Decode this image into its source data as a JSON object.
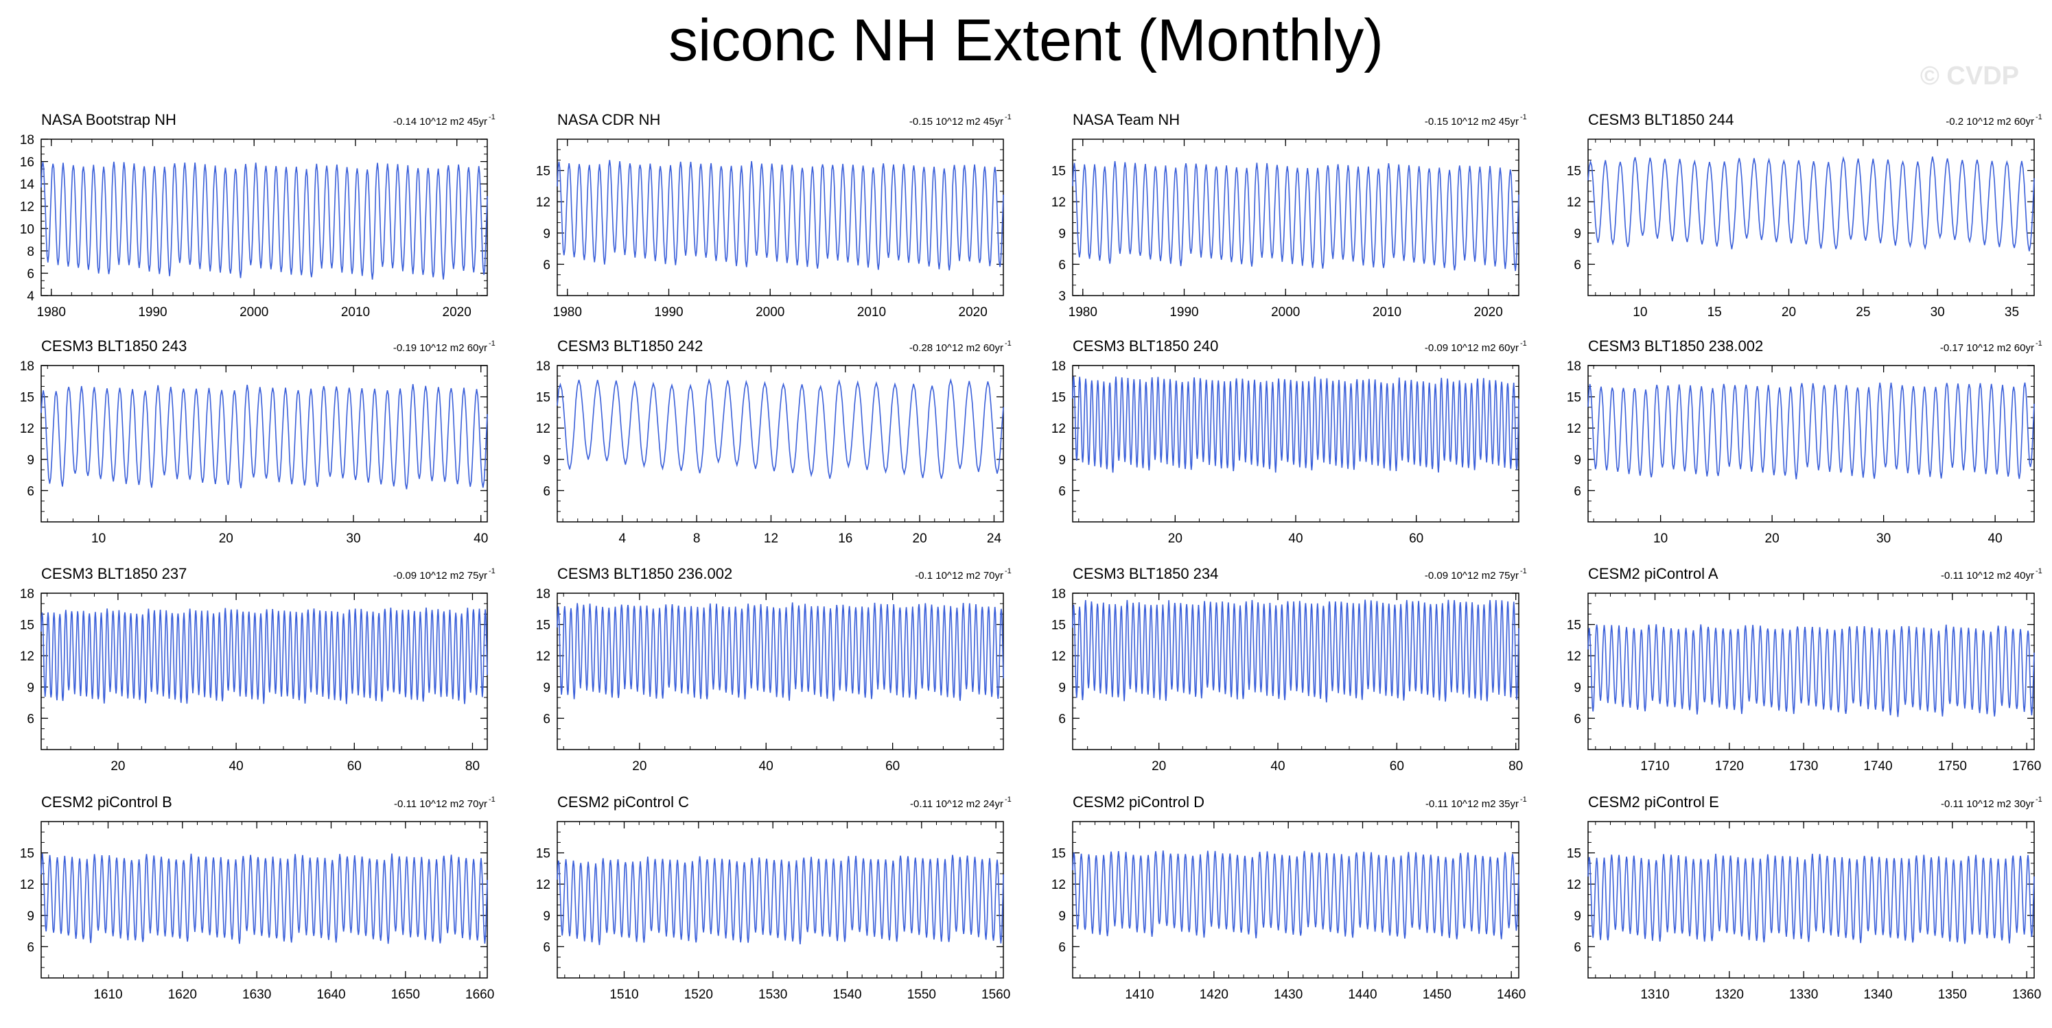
{
  "title": "siconc NH Extent (Monthly)",
  "watermark": "© CVDP",
  "line_color": "#3a5fd9",
  "chart_data": [
    {
      "type": "line",
      "title": "NASA Bootstrap NH",
      "trend": "-0.14 10^12 m2 45yr",
      "xlim": [
        1979,
        2023
      ],
      "ylim": [
        4,
        18
      ],
      "yticks": [
        4,
        6,
        8,
        10,
        12,
        14,
        16,
        18
      ],
      "xticks": [
        1980,
        1990,
        2000,
        2010,
        2020
      ],
      "min_start": 6.5,
      "min_end": 5.8,
      "max_start": 15.8,
      "max_end": 15.5
    },
    {
      "type": "line",
      "title": "NASA CDR NH",
      "trend": "-0.15 10^12 m2 45yr",
      "xlim": [
        1979,
        2023
      ],
      "ylim": [
        3,
        18
      ],
      "yticks": [
        6,
        9,
        12,
        15
      ],
      "xticks": [
        1980,
        1990,
        2000,
        2010,
        2020
      ],
      "min_start": 6.6,
      "min_end": 5.8,
      "max_start": 15.7,
      "max_end": 15.4
    },
    {
      "type": "line",
      "title": "NASA Team NH",
      "trend": "-0.15 10^12 m2 45yr",
      "xlim": [
        1979,
        2023
      ],
      "ylim": [
        3,
        18
      ],
      "yticks": [
        3,
        6,
        9,
        12,
        15
      ],
      "xticks": [
        1980,
        1990,
        2000,
        2010,
        2020
      ],
      "min_start": 6.6,
      "min_end": 5.8,
      "max_start": 15.6,
      "max_end": 15.3
    },
    {
      "type": "line",
      "title": "CESM3 BLT1850 244",
      "trend": "-0.2 10^12 m2 60yr",
      "xlim": [
        6.5,
        36.5
      ],
      "ylim": [
        3,
        18
      ],
      "yticks": [
        6,
        9,
        12,
        15
      ],
      "xticks": [
        10,
        15,
        20,
        25,
        30,
        35
      ],
      "min_start": 8.2,
      "min_end": 7.8,
      "max_start": 16.0,
      "max_end": 16.0
    },
    {
      "type": "line",
      "title": "CESM3 BLT1850 243",
      "trend": "-0.19 10^12 m2 60yr",
      "xlim": [
        5.5,
        40.5
      ],
      "ylim": [
        3,
        18
      ],
      "yticks": [
        6,
        9,
        12,
        15,
        18
      ],
      "xticks": [
        10,
        20,
        30,
        40
      ],
      "min_start": 7.0,
      "min_end": 6.6,
      "max_start": 15.8,
      "max_end": 15.9
    },
    {
      "type": "line",
      "title": "CESM3 BLT1850 242",
      "trend": "-0.28 10^12 m2 60yr",
      "xlim": [
        0.5,
        24.5
      ],
      "ylim": [
        3,
        18
      ],
      "yticks": [
        6,
        9,
        12,
        15,
        18
      ],
      "xticks": [
        4,
        8,
        12,
        16,
        20,
        24
      ],
      "min_start": 8.6,
      "min_end": 7.4,
      "max_start": 16.4,
      "max_end": 16.3
    },
    {
      "type": "line",
      "title": "CESM3 BLT1850 240",
      "trend": "-0.09 10^12 m2 60yr",
      "xlim": [
        3,
        77
      ],
      "ylim": [
        3,
        18
      ],
      "yticks": [
        6,
        9,
        12,
        15,
        18
      ],
      "xticks": [
        20,
        40,
        60
      ],
      "min_start": 8.4,
      "min_end": 8.4,
      "max_start": 16.7,
      "max_end": 16.5
    },
    {
      "type": "line",
      "title": "CESM3 BLT1850 238.002",
      "trend": "-0.17 10^12 m2 60yr",
      "xlim": [
        3.5,
        43.5
      ],
      "ylim": [
        3,
        18
      ],
      "yticks": [
        6,
        9,
        12,
        15,
        18
      ],
      "xticks": [
        10,
        20,
        30,
        40
      ],
      "min_start": 7.8,
      "min_end": 7.6,
      "max_start": 16.0,
      "max_end": 16.2
    },
    {
      "type": "line",
      "title": "CESM3 BLT1850 237",
      "trend": "-0.09 10^12 m2 75yr",
      "xlim": [
        7,
        82.5
      ],
      "ylim": [
        3,
        18
      ],
      "yticks": [
        6,
        9,
        12,
        15,
        18
      ],
      "xticks": [
        20,
        40,
        60,
        80
      ],
      "min_start": 8.0,
      "min_end": 8.0,
      "max_start": 16.2,
      "max_end": 16.4
    },
    {
      "type": "line",
      "title": "CESM3 BLT1850 236.002",
      "trend": "-0.1 10^12 m2 70yr",
      "xlim": [
        7,
        77.5
      ],
      "ylim": [
        3,
        18
      ],
      "yticks": [
        6,
        9,
        12,
        15,
        18
      ],
      "xticks": [
        20,
        40,
        60
      ],
      "min_start": 8.4,
      "min_end": 8.2,
      "max_start": 16.8,
      "max_end": 16.8
    },
    {
      "type": "line",
      "title": "CESM3 BLT1850 234",
      "trend": "-0.09 10^12 m2 75yr",
      "xlim": [
        5.5,
        80.5
      ],
      "ylim": [
        3,
        18
      ],
      "yticks": [
        6,
        9,
        12,
        15,
        18
      ],
      "xticks": [
        20,
        40,
        60,
        80
      ],
      "min_start": 8.3,
      "min_end": 8.1,
      "max_start": 17.0,
      "max_end": 17.2
    },
    {
      "type": "line",
      "title": "CESM2 piControl A",
      "trend": "-0.11 10^12 m2 40yr",
      "xlim": [
        1701,
        1761
      ],
      "ylim": [
        3,
        18
      ],
      "yticks": [
        6,
        9,
        12,
        15
      ],
      "xticks": [
        1710,
        1720,
        1730,
        1740,
        1750,
        1760
      ],
      "min_start": 7.2,
      "min_end": 6.6,
      "max_start": 14.8,
      "max_end": 14.6
    },
    {
      "type": "line",
      "title": "CESM2 piControl B",
      "trend": "-0.11 10^12 m2 70yr",
      "xlim": [
        1601,
        1661
      ],
      "ylim": [
        3,
        18
      ],
      "yticks": [
        6,
        9,
        12,
        15
      ],
      "xticks": [
        1610,
        1620,
        1630,
        1640,
        1650,
        1660
      ],
      "min_start": 7.0,
      "min_end": 6.8,
      "max_start": 14.6,
      "max_end": 14.6
    },
    {
      "type": "line",
      "title": "CESM2 piControl C",
      "trend": "-0.11 10^12 m2 24yr",
      "xlim": [
        1501,
        1561
      ],
      "ylim": [
        3,
        18
      ],
      "yticks": [
        6,
        9,
        12,
        15
      ],
      "xticks": [
        1510,
        1520,
        1530,
        1540,
        1550,
        1560
      ],
      "min_start": 6.8,
      "min_end": 7.0,
      "max_start": 14.2,
      "max_end": 14.6
    },
    {
      "type": "line",
      "title": "CESM2 piControl D",
      "trend": "-0.11 10^12 m2 35yr",
      "xlim": [
        1401,
        1461
      ],
      "ylim": [
        3,
        18
      ],
      "yticks": [
        6,
        9,
        12,
        15
      ],
      "xticks": [
        1410,
        1420,
        1430,
        1440,
        1450,
        1460
      ],
      "min_start": 7.6,
      "min_end": 7.2,
      "max_start": 15.0,
      "max_end": 14.8
    },
    {
      "type": "line",
      "title": "CESM2 piControl E",
      "trend": "-0.11 10^12 m2 30yr",
      "xlim": [
        1301,
        1361
      ],
      "ylim": [
        3,
        18
      ],
      "yticks": [
        6,
        9,
        12,
        15
      ],
      "xticks": [
        1310,
        1320,
        1330,
        1340,
        1350,
        1360
      ],
      "min_start": 7.0,
      "min_end": 6.8,
      "max_start": 14.6,
      "max_end": 14.6
    }
  ]
}
